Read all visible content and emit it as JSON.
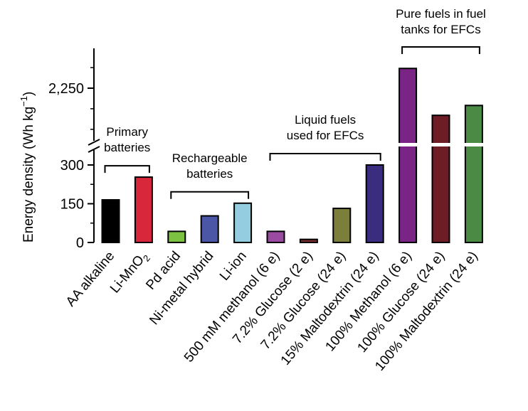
{
  "chart_data": {
    "type": "bar",
    "ylabel": "Energy density (Wh kg",
    "ylabel_sup": "−1",
    "ylabel_close": ")",
    "axis_break": true,
    "lower_ylim": [
      0,
      360
    ],
    "upper_ylim": [
      1900,
      2500
    ],
    "lower_ticks": [
      {
        "value": 0,
        "label": "0"
      },
      {
        "value": 150,
        "label": "150"
      },
      {
        "value": 300,
        "label": "300"
      }
    ],
    "upper_ticks": [
      {
        "value": 2250,
        "label": "2,250"
      }
    ],
    "bars": [
      {
        "label": "AA alkaline",
        "value": 165,
        "color": "#000000"
      },
      {
        "label": "Li-MnO",
        "label_sub": "2",
        "value": 253,
        "color": "#d8263a"
      },
      {
        "label": "Pd acid",
        "value": 43,
        "color": "#7cc142"
      },
      {
        "label": "Ni-metal hybrid",
        "value": 103,
        "color": "#4b56a6"
      },
      {
        "label": "Li-ion",
        "value": 152,
        "color": "#94cde0"
      },
      {
        "label": "500 mM methanol (6 e)",
        "value": 43,
        "color": "#9a4aa0"
      },
      {
        "label": "7.2% Glucose (2 e)",
        "value": 12,
        "color": "#7a2b2b"
      },
      {
        "label": "7.2% Glucose (24 e)",
        "value": 132,
        "color": "#7b7f3b"
      },
      {
        "label": "15% Maltodextrin (24 e)",
        "value": 300,
        "color": "#3a2d80"
      },
      {
        "label": "100% Methanol (6 e)",
        "value": 2370,
        "color": "#7a2585"
      },
      {
        "label": "100% Glucose (24 e)",
        "value": 2085,
        "color": "#6e1d26"
      },
      {
        "label": "100% Maltodextrin (24 e)",
        "value": 2145,
        "color": "#4a8a45"
      }
    ],
    "groups": [
      {
        "label_lines": [
          "Primary",
          "batteries"
        ],
        "from": 0,
        "to": 1,
        "placement": "lower"
      },
      {
        "label_lines": [
          "Rechargeable",
          "batteries"
        ],
        "from": 2,
        "to": 4,
        "placement": "lower"
      },
      {
        "label_lines": [
          "Liquid fuels",
          "used for EFCs"
        ],
        "from": 5,
        "to": 8,
        "placement": "lower"
      },
      {
        "label_lines": [
          "Pure fuels in fuel",
          "tanks for EFCs"
        ],
        "from": 9,
        "to": 11,
        "placement": "top"
      }
    ]
  }
}
